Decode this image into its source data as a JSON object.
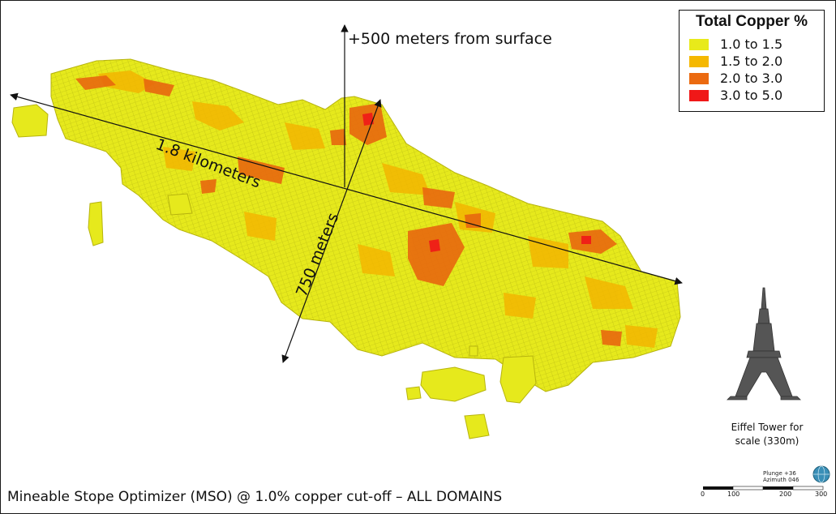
{
  "annotations": {
    "vertical": "+500 meters from surface",
    "length": "1.8 kilometers",
    "width": "750 meters"
  },
  "legend": {
    "title": "Total Copper %",
    "items": [
      {
        "label": "1.0 to 1.5",
        "color": "#e8ea1a"
      },
      {
        "label": "1.5 to 2.0",
        "color": "#f5b800"
      },
      {
        "label": "2.0 to 3.0",
        "color": "#eb6a10"
      },
      {
        "label": "3.0 to 5.0",
        "color": "#f01818"
      }
    ]
  },
  "scale_reference": {
    "caption_line1": "Eiffel Tower for",
    "caption_line2": "scale (330m)"
  },
  "orientation": {
    "plunge": "Plunge +36",
    "azimuth": "Azimuth 046"
  },
  "scale_bar": {
    "ticks": [
      "0",
      "100",
      "200",
      "300"
    ]
  },
  "caption": "Mineable Stope Optimizer (MSO) @ 1.0% copper cut-off – ALL DOMAINS"
}
